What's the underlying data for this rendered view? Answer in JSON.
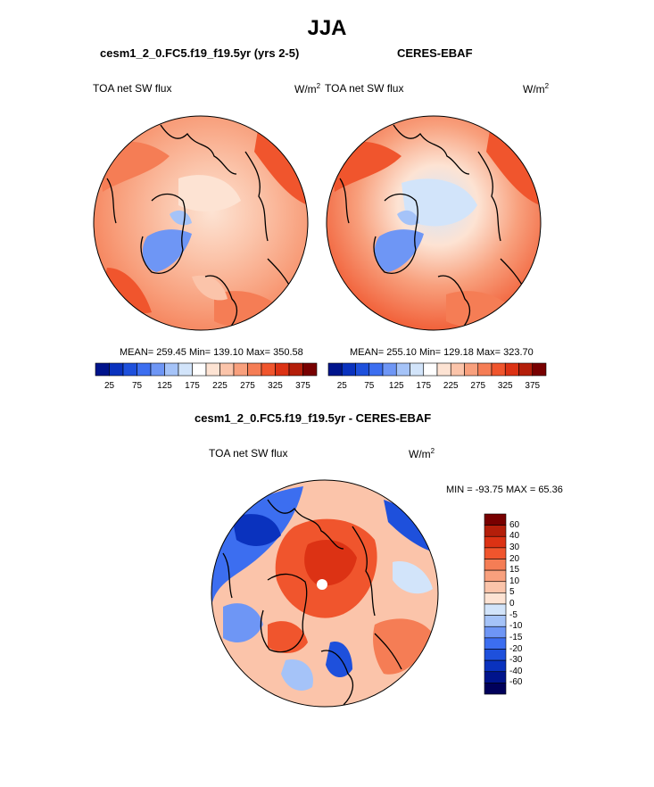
{
  "page_title": "JJA",
  "panels": {
    "model": {
      "case_title": "cesm1_2_0.FC5.f19_f19.5yr (yrs 2-5)",
      "variable": "TOA net SW flux",
      "units": "W/m",
      "units_exp": "2",
      "stats": "MEAN= 259.45  Min= 139.10  Max= 350.58"
    },
    "obs": {
      "case_title": "CERES-EBAF",
      "variable": "TOA net SW flux",
      "units": "W/m",
      "units_exp": "2",
      "stats": "MEAN= 255.10  Min= 129.18  Max= 323.70"
    },
    "diff": {
      "case_title": "cesm1_2_0.FC5.f19_f19.5yr - CERES-EBAF",
      "variable": "TOA net SW flux",
      "units": "W/m",
      "units_exp": "2",
      "stats": "MIN = -93.75 MAX =  65.36"
    }
  },
  "colorbar_top": {
    "tick_labels": [
      "25",
      "75",
      "125",
      "175",
      "225",
      "275",
      "325",
      "375"
    ],
    "colors": [
      "#00148c",
      "#0a32be",
      "#1e50dc",
      "#3c6ef0",
      "#6e96f5",
      "#a5c3f8",
      "#d2e4fa",
      "#ffffff",
      "#fde3d3",
      "#fbc4aa",
      "#f8a07d",
      "#f57d55",
      "#f0552d",
      "#dc3214",
      "#b41e0a",
      "#780000"
    ]
  },
  "colorbar_diff": {
    "tick_labels": [
      "60",
      "40",
      "30",
      "20",
      "15",
      "10",
      "5",
      "0",
      "-5",
      "-10",
      "-15",
      "-20",
      "-30",
      "-40",
      "-60"
    ],
    "colors": [
      "#780000",
      "#b41e0a",
      "#dc3214",
      "#f0552d",
      "#f57d55",
      "#f8a07d",
      "#fbc4aa",
      "#fde3d3",
      "#d2e4fa",
      "#a5c3f8",
      "#6e96f5",
      "#3c6ef0",
      "#1e50dc",
      "#0a32be",
      "#00148c",
      "#00005a"
    ]
  },
  "chart_data": [
    {
      "type": "heatmap",
      "title": "TOA net SW flux",
      "subtitle": "cesm1_2_0.FC5.f19_f19.5yr (yrs 2-5)",
      "projection": "north polar stereographic",
      "units": "W/m^2",
      "mean": 259.45,
      "min": 139.1,
      "max": 350.58,
      "colorbar_levels": [
        25,
        75,
        125,
        175,
        225,
        275,
        325,
        375
      ]
    },
    {
      "type": "heatmap",
      "title": "TOA net SW flux",
      "subtitle": "CERES-EBAF",
      "projection": "north polar stereographic",
      "units": "W/m^2",
      "mean": 255.1,
      "min": 129.18,
      "max": 323.7,
      "colorbar_levels": [
        25,
        75,
        125,
        175,
        225,
        275,
        325,
        375
      ]
    },
    {
      "type": "heatmap",
      "title": "TOA net SW flux",
      "subtitle": "cesm1_2_0.FC5.f19_f19.5yr - CERES-EBAF",
      "projection": "north polar stereographic",
      "units": "W/m^2",
      "min": -93.75,
      "max": 65.36,
      "colorbar_levels": [
        60,
        40,
        30,
        20,
        15,
        10,
        5,
        0,
        -5,
        -10,
        -15,
        -20,
        -30,
        -40,
        -60
      ]
    }
  ]
}
